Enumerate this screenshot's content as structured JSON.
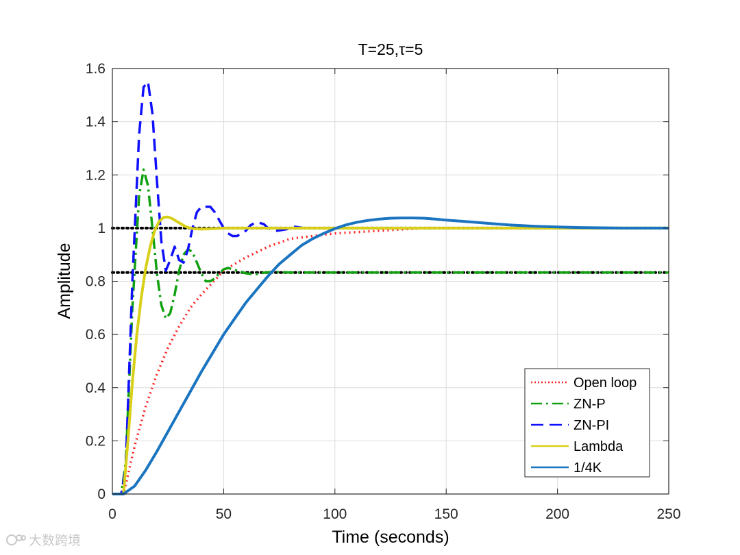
{
  "chart_data": {
    "type": "line",
    "title": "T=25,τ=5",
    "xlabel": "Time (seconds)",
    "ylabel": "Amplitude",
    "xlim": [
      0,
      250
    ],
    "ylim": [
      0,
      1.6
    ],
    "xticks": [
      0,
      50,
      100,
      150,
      200,
      250
    ],
    "xtick_labels": [
      "0",
      "50",
      "100",
      "150",
      "200",
      "250"
    ],
    "yticks": [
      0,
      0.2,
      0.4,
      0.6,
      0.8,
      1,
      1.2,
      1.4,
      1.6
    ],
    "ytick_labels": [
      "0",
      "0.2",
      "0.4",
      "0.6",
      "0.8",
      "1",
      "1.2",
      "1.4",
      "1.6"
    ],
    "grid": true,
    "legend_position": "bottom-right",
    "reference_lines": [
      {
        "y": 1.0,
        "color": "#000000",
        "style": "dotted"
      },
      {
        "y": 0.833,
        "color": "#000000",
        "style": "dotted"
      }
    ],
    "series": [
      {
        "name": "Open loop",
        "color": "#ff2020",
        "style": "dotted",
        "width": 3.5,
        "x": [
          0,
          5,
          10,
          15,
          20,
          25,
          30,
          35,
          40,
          50,
          60,
          70,
          80,
          90,
          100,
          120,
          140,
          160,
          200,
          250
        ],
        "y": [
          0,
          0,
          0.18,
          0.33,
          0.45,
          0.55,
          0.63,
          0.7,
          0.75,
          0.84,
          0.89,
          0.93,
          0.96,
          0.97,
          0.98,
          0.99,
          1.0,
          1.0,
          1.0,
          1.0
        ]
      },
      {
        "name": "ZN-P",
        "color": "#10a010",
        "style": "dashdot",
        "width": 3.5,
        "x": [
          0,
          4,
          6,
          9,
          12,
          14,
          16,
          18,
          20,
          22,
          24,
          26,
          28,
          30,
          32,
          34,
          36,
          38,
          40,
          42,
          44,
          46,
          48,
          50,
          52,
          54,
          56,
          58,
          60,
          64,
          68,
          72,
          76,
          80,
          90,
          100,
          150,
          200,
          250
        ],
        "y": [
          0,
          0,
          0.12,
          0.7,
          1.12,
          1.22,
          1.16,
          1.0,
          0.83,
          0.71,
          0.66,
          0.68,
          0.75,
          0.84,
          0.9,
          0.92,
          0.91,
          0.87,
          0.83,
          0.8,
          0.8,
          0.81,
          0.83,
          0.845,
          0.85,
          0.845,
          0.84,
          0.835,
          0.83,
          0.826,
          0.832,
          0.835,
          0.834,
          0.833,
          0.833,
          0.833,
          0.833,
          0.833,
          0.833
        ]
      },
      {
        "name": "ZN-PI",
        "color": "#1010ff",
        "style": "dashed",
        "width": 3.5,
        "x": [
          0,
          4,
          6,
          9,
          12,
          14,
          16,
          18,
          20,
          22,
          24,
          26,
          28,
          30,
          32,
          34,
          36,
          38,
          40,
          42,
          44,
          46,
          48,
          50,
          52,
          54,
          56,
          58,
          60,
          62,
          64,
          66,
          68,
          70,
          74,
          78,
          82,
          86,
          90,
          100,
          120,
          150,
          250
        ],
        "y": [
          0,
          0,
          0.1,
          0.8,
          1.35,
          1.53,
          1.55,
          1.43,
          1.18,
          0.95,
          0.84,
          0.88,
          0.93,
          0.88,
          0.87,
          0.92,
          1.0,
          1.06,
          1.08,
          1.08,
          1.08,
          1.06,
          1.03,
          1.0,
          0.98,
          0.97,
          0.97,
          0.98,
          0.99,
          1.01,
          1.02,
          1.02,
          1.015,
          1.0,
          0.99,
          0.995,
          1.005,
          1.0,
          1.0,
          1.0,
          1.0,
          1.0,
          1.0
        ]
      },
      {
        "name": "Lambda",
        "color": "#d8d018",
        "style": "solid",
        "width": 4,
        "x": [
          0,
          5,
          7,
          9,
          11,
          13,
          15,
          17,
          19,
          21,
          23,
          25,
          27,
          30,
          33,
          36,
          40,
          45,
          50,
          60,
          80,
          100,
          150,
          250
        ],
        "y": [
          0,
          0,
          0.2,
          0.42,
          0.6,
          0.74,
          0.85,
          0.93,
          0.99,
          1.025,
          1.04,
          1.042,
          1.035,
          1.02,
          1.005,
          0.998,
          0.996,
          0.998,
          1.0,
          1.0,
          1.0,
          1.0,
          1.0,
          1.0
        ]
      },
      {
        "name": "1/4K",
        "color": "#1a74c0",
        "style": "solid",
        "width": 4,
        "x": [
          0,
          5,
          10,
          15,
          20,
          25,
          30,
          35,
          40,
          45,
          50,
          55,
          60,
          65,
          70,
          75,
          80,
          85,
          90,
          95,
          100,
          105,
          110,
          115,
          120,
          125,
          130,
          135,
          140,
          145,
          150,
          160,
          170,
          180,
          190,
          200,
          210,
          220,
          230,
          240,
          250
        ],
        "y": [
          0,
          0,
          0.03,
          0.09,
          0.16,
          0.235,
          0.31,
          0.385,
          0.46,
          0.53,
          0.6,
          0.66,
          0.72,
          0.77,
          0.82,
          0.865,
          0.9,
          0.935,
          0.96,
          0.98,
          0.998,
          1.012,
          1.022,
          1.029,
          1.034,
          1.037,
          1.038,
          1.038,
          1.037,
          1.034,
          1.03,
          1.024,
          1.017,
          1.011,
          1.007,
          1.004,
          1.002,
          1.001,
          1.0,
          1.0,
          1.0
        ]
      }
    ]
  },
  "watermark": {
    "text": "大数跨境"
  }
}
